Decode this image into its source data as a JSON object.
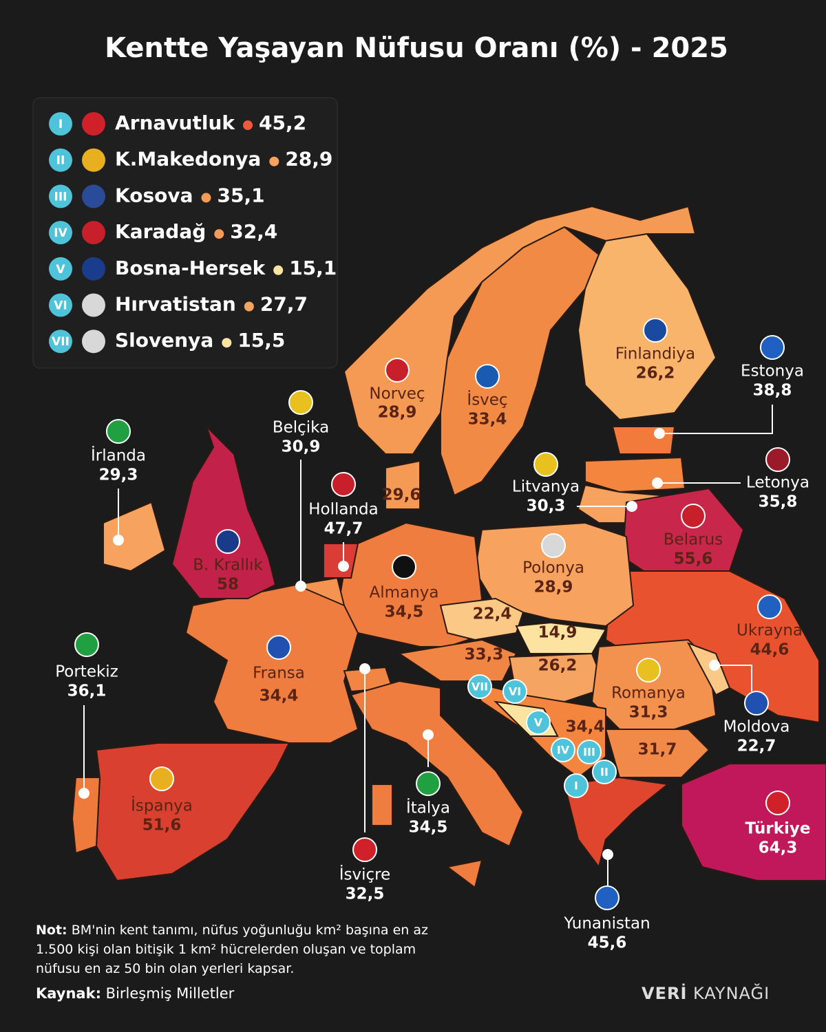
{
  "title": "Kentte Yaşayan Nüfusu Oranı (%) - 2025",
  "legend": [
    {
      "numeral": "I",
      "name": "Arnavutluk",
      "value": "45,2"
    },
    {
      "numeral": "II",
      "name": "K.Makedonya",
      "value": "28,9"
    },
    {
      "numeral": "III",
      "name": "Kosova",
      "value": "35,1"
    },
    {
      "numeral": "IV",
      "name": "Karadağ",
      "value": "32,4"
    },
    {
      "numeral": "V",
      "name": "Bosna-Hersek",
      "value": "15,1"
    },
    {
      "numeral": "VI",
      "name": "Hırvatistan",
      "value": "27,7"
    },
    {
      "numeral": "VII",
      "name": "Slovenya",
      "value": "15,5"
    }
  ],
  "countries": [
    {
      "name": "Finlandiya",
      "value": "26,2"
    },
    {
      "name": "Estonya",
      "value": "38,8"
    },
    {
      "name": "Norveç",
      "value": "28,9"
    },
    {
      "name": "İsveç",
      "value": "33,4"
    },
    {
      "name": "İrlanda",
      "value": "29,3"
    },
    {
      "name": "Belçika",
      "value": "30,9"
    },
    {
      "name": "Letonya",
      "value": "35,8"
    },
    {
      "name": "Litvanya",
      "value": "30,3"
    },
    {
      "name": "Hollanda",
      "value": "47,7"
    },
    {
      "name": "Belarus",
      "value": "55,6"
    },
    {
      "name": "B. Krallık",
      "value": "58"
    },
    {
      "name": "Polonya",
      "value": "28,9"
    },
    {
      "name": "Almanya",
      "value": "34,5"
    },
    {
      "name": "Ukrayna",
      "value": "44,6"
    },
    {
      "name": "Portekiz",
      "value": "36,1"
    },
    {
      "name": "Fransa",
      "value": "34,4"
    },
    {
      "name": "Romanya",
      "value": "31,3"
    },
    {
      "name": "Moldova",
      "value": "22,7"
    },
    {
      "name": "İspanya",
      "value": "51,6"
    },
    {
      "name": "Türkiye",
      "value": "64,3"
    },
    {
      "name": "İsviçre",
      "value": "32,5"
    },
    {
      "name": "İtalya",
      "value": "34,5"
    },
    {
      "name": "Yunanistan",
      "value": "45,6"
    }
  ],
  "unlabeled_values": [
    "29,6",
    "22,4",
    "14,9",
    "33,3",
    "26,2",
    "34,4",
    "31,7"
  ],
  "note": {
    "label": "Not:",
    "text": "BM'nin kent tanımı, nüfus yoğunluğu km² başına en az 1.500 kişi olan bitişik 1 km² hücrelerden oluşan ve toplam nüfusu en az 50 bin olan yerleri kapsar."
  },
  "source": {
    "label": "Kaynak:",
    "text": "Birleşmiş Milletler"
  },
  "brand": {
    "bold": "VERİ",
    "light": "KAYNAĞI"
  }
}
